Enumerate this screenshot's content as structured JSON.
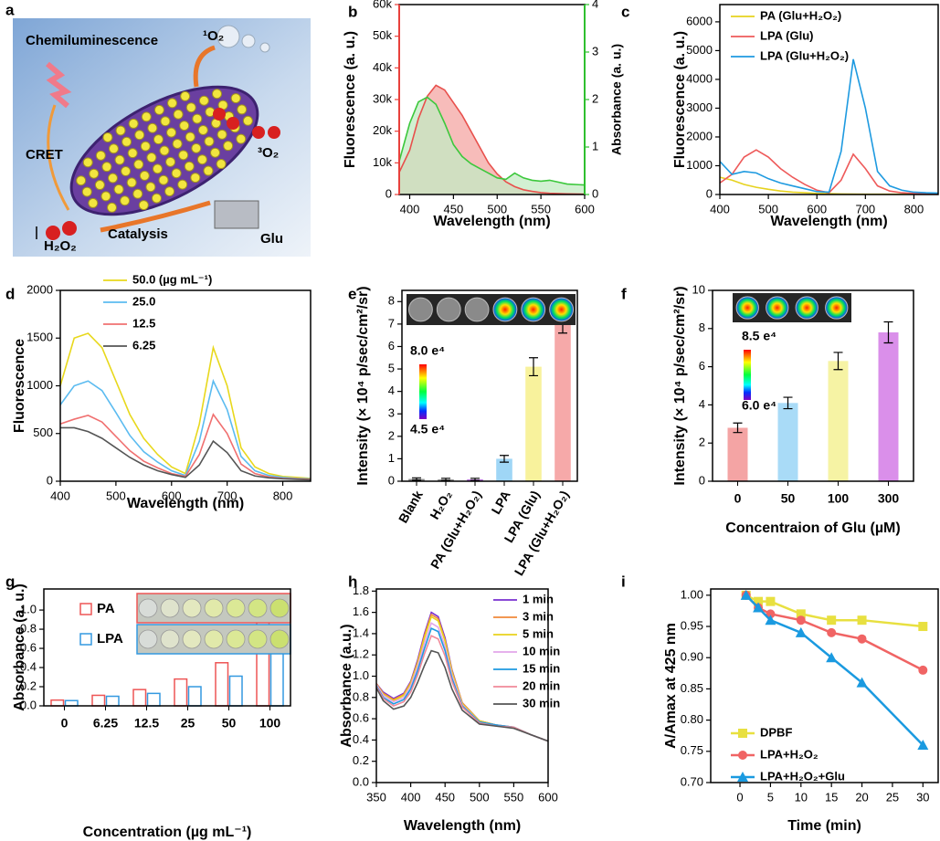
{
  "illustration": {
    "panel": "a",
    "labels": [
      "Chemiluminescence",
      "¹O₂",
      "³O₂",
      "CRET",
      "H₂O₂",
      "Catalysis",
      "Glu"
    ]
  },
  "chart_data": [
    {
      "panel": "b",
      "type": "line",
      "xlabel": "Wavelength (nm)",
      "ylabel": "Fluorescence (a. u.)",
      "y2label": "Absorbance (a. u.)",
      "axis_color": "#e8413c",
      "y2_color": "#2fbf2f",
      "x": [
        388,
        400,
        410,
        420,
        430,
        440,
        450,
        460,
        470,
        480,
        490,
        500,
        510,
        520,
        530,
        540,
        550,
        560,
        580,
        600
      ],
      "series": [
        {
          "color": "#e8504c",
          "fill": "#f4a6a3",
          "values": [
            7000,
            14000,
            24000,
            31000,
            34500,
            33000,
            29000,
            25000,
            20000,
            15000,
            10000,
            6500,
            4000,
            2500,
            1500,
            1000,
            600,
            400,
            200,
            100
          ]
        },
        {
          "color": "#3cc83c",
          "fill": "#c3ebc3",
          "axis": "y2",
          "values": [
            0.7,
            1.5,
            1.95,
            2.05,
            1.9,
            1.5,
            1.05,
            0.8,
            0.65,
            0.55,
            0.45,
            0.35,
            0.32,
            0.45,
            0.35,
            0.3,
            0.28,
            0.3,
            0.22,
            0.2
          ]
        }
      ],
      "xlim": [
        388,
        600
      ],
      "xticks": [
        400,
        450,
        500,
        550,
        600
      ],
      "ylim": [
        0,
        60000
      ],
      "yticks": [
        0,
        {
          "value": 10000,
          "label": "10k"
        },
        {
          "value": 20000,
          "label": "20k"
        },
        {
          "value": 30000,
          "label": "30k"
        },
        {
          "value": 40000,
          "label": "40k"
        },
        {
          "value": 50000,
          "label": "50k"
        },
        {
          "value": 60000,
          "label": "60k"
        }
      ],
      "y2lim": [
        0,
        4
      ],
      "y2ticks": [
        0,
        1,
        2,
        3,
        4
      ]
    },
    {
      "panel": "c",
      "type": "line",
      "xlabel": "Wavelength (nm)",
      "ylabel": "Fluorescence (a. u.)",
      "x": [
        400,
        425,
        450,
        475,
        500,
        525,
        550,
        575,
        600,
        625,
        650,
        675,
        700,
        725,
        750,
        775,
        800,
        825,
        850
      ],
      "series": [
        {
          "name": "PA (Glu+H₂O₂)",
          "color": "#e6d21e",
          "values": [
            600,
            500,
            350,
            250,
            180,
            120,
            80,
            60,
            40,
            30,
            20,
            15,
            10,
            10,
            10,
            10,
            10,
            10,
            10
          ]
        },
        {
          "name": "LPA (Glu)",
          "color": "#ee5a5a",
          "values": [
            400,
            700,
            1300,
            1550,
            1300,
            900,
            600,
            350,
            150,
            60,
            500,
            1400,
            900,
            300,
            120,
            60,
            40,
            30,
            20
          ]
        },
        {
          "name": "LPA (Glu+H₂O₂)",
          "color": "#1e9ae0",
          "values": [
            1150,
            700,
            800,
            750,
            550,
            400,
            300,
            200,
            100,
            80,
            1500,
            4700,
            3000,
            800,
            300,
            150,
            80,
            60,
            50
          ]
        }
      ],
      "xlim": [
        400,
        850
      ],
      "xticks": [
        400,
        500,
        600,
        700,
        800
      ],
      "ylim": [
        0,
        6600
      ],
      "yticks": [
        0,
        1000,
        2000,
        3000,
        4000,
        5000,
        6000
      ]
    },
    {
      "panel": "d",
      "type": "line",
      "xlabel": "Wavelength (nm)",
      "ylabel": "Fluorescence",
      "x": [
        400,
        425,
        450,
        475,
        500,
        525,
        550,
        575,
        600,
        625,
        650,
        675,
        700,
        725,
        750,
        775,
        800,
        825,
        850
      ],
      "series": [
        {
          "name": "50.0 (µg mL⁻¹)",
          "color": "#e8d81c",
          "values": [
            1000,
            1500,
            1550,
            1400,
            1050,
            700,
            450,
            280,
            150,
            80,
            600,
            1400,
            1000,
            350,
            150,
            80,
            50,
            40,
            30
          ]
        },
        {
          "name": "25.0",
          "color": "#5bbbf0",
          "values": [
            800,
            1000,
            1050,
            950,
            720,
            480,
            310,
            200,
            110,
            60,
            420,
            1050,
            750,
            260,
            110,
            60,
            40,
            30,
            25
          ]
        },
        {
          "name": "12.5",
          "color": "#f07070",
          "values": [
            600,
            650,
            690,
            620,
            470,
            320,
            210,
            140,
            80,
            50,
            280,
            700,
            500,
            180,
            80,
            45,
            30,
            25,
            20
          ]
        },
        {
          "name": "6.25",
          "color": "#555555",
          "values": [
            560,
            560,
            520,
            450,
            350,
            250,
            170,
            110,
            70,
            40,
            170,
            420,
            300,
            110,
            55,
            35,
            25,
            20,
            15
          ]
        }
      ],
      "xlim": [
        400,
        850
      ],
      "xticks": [
        400,
        500,
        600,
        700,
        800
      ],
      "ylim": [
        0,
        2000
      ],
      "yticks": [
        0,
        500,
        1000,
        1500,
        2000
      ]
    },
    {
      "panel": "e",
      "type": "bar",
      "ylabel": "Intensity (× 10⁴ p/sec/cm²/sr)",
      "categories": [
        "Blank",
        "H₂O₂",
        "PA (Glu+H₂O₂)",
        "LPA",
        "LPA (Glu)",
        "LPA (Glu+H₂O₂)"
      ],
      "values": [
        0.1,
        0.08,
        0.08,
        1.0,
        5.1,
        7.2
      ],
      "errors": [
        0.05,
        0.05,
        0.05,
        0.15,
        0.4,
        0.6
      ],
      "colors": [
        "#8c8c8c",
        "#8c8c8c",
        "#b36ad6",
        "#9fd6f6",
        "#f8f29c",
        "#f6a9a9"
      ],
      "colorbar_labels": [
        "8.0 e⁴",
        "4.5 e⁴"
      ],
      "ylim": [
        0,
        8.5
      ],
      "yticks": [
        0,
        1,
        2,
        3,
        4,
        5,
        6,
        7,
        8
      ]
    },
    {
      "panel": "f",
      "type": "bar",
      "xlabel": "Concentraion of Glu (µM)",
      "ylabel": "Intensity (× 10⁴ p/sec/cm²/sr)",
      "categories": [
        "0",
        "50",
        "100",
        "300"
      ],
      "values": [
        2.8,
        4.1,
        6.3,
        7.8
      ],
      "errors": [
        0.25,
        0.3,
        0.45,
        0.55
      ],
      "colors": [
        "#f4a4a4",
        "#a9dbf7",
        "#f6f3a4",
        "#da8fea"
      ],
      "colorbar_labels": [
        "8.5 e⁴",
        "6.0 e⁴"
      ],
      "ylim": [
        0,
        10
      ],
      "yticks": [
        0,
        2,
        4,
        6,
        8,
        10
      ]
    },
    {
      "panel": "g",
      "type": "bar",
      "xlabel": "Concentration (µg mL⁻¹)",
      "ylabel": "Absorbance (a. u.)",
      "categories": [
        "0",
        "6.25",
        "12.5",
        "25",
        "50",
        "100"
      ],
      "series": [
        {
          "name": "PA",
          "color": "#ee5555",
          "values": [
            0.06,
            0.11,
            0.17,
            0.28,
            0.45,
            0.95
          ]
        },
        {
          "name": "LPA",
          "color": "#3399e0",
          "values": [
            0.055,
            0.1,
            0.13,
            0.2,
            0.31,
            0.56
          ]
        }
      ],
      "ylim": [
        0,
        1.22
      ],
      "yticks": [
        {
          "value": 0,
          "label": "0.0"
        },
        {
          "value": 0.2,
          "label": "0.2"
        },
        {
          "value": 0.4,
          "label": "0.4"
        },
        {
          "value": 0.6,
          "label": "0.6"
        },
        {
          "value": 0.8,
          "label": "0.8"
        },
        {
          "value": 1,
          "label": "1.0"
        }
      ]
    },
    {
      "panel": "h",
      "type": "line",
      "xlabel": "Wavelength (nm)",
      "ylabel": "Absorbance (a.u.)",
      "x": [
        350,
        360,
        375,
        390,
        400,
        410,
        420,
        430,
        440,
        450,
        460,
        475,
        500,
        525,
        550,
        575,
        600
      ],
      "series": [
        {
          "name": "1 min",
          "color": "#7a2fd0",
          "values": [
            0.93,
            0.85,
            0.79,
            0.84,
            0.95,
            1.15,
            1.4,
            1.6,
            1.56,
            1.36,
            1.06,
            0.75,
            0.58,
            0.54,
            0.52,
            0.45,
            0.39
          ]
        },
        {
          "name": "3 min",
          "color": "#f08a3a",
          "values": [
            0.93,
            0.84,
            0.78,
            0.83,
            0.94,
            1.13,
            1.38,
            1.58,
            1.54,
            1.34,
            1.05,
            0.75,
            0.58,
            0.54,
            0.52,
            0.45,
            0.39
          ]
        },
        {
          "name": "5 min",
          "color": "#e8d21c",
          "values": [
            0.92,
            0.83,
            0.77,
            0.82,
            0.93,
            1.12,
            1.36,
            1.56,
            1.52,
            1.33,
            1.04,
            0.74,
            0.58,
            0.54,
            0.52,
            0.45,
            0.39
          ]
        },
        {
          "name": "10 min",
          "color": "#e2a6ea",
          "values": [
            0.92,
            0.82,
            0.76,
            0.8,
            0.91,
            1.09,
            1.31,
            1.5,
            1.46,
            1.28,
            1.01,
            0.73,
            0.57,
            0.54,
            0.52,
            0.45,
            0.39
          ]
        },
        {
          "name": "15 min",
          "color": "#1e9ae0",
          "values": [
            0.91,
            0.8,
            0.74,
            0.78,
            0.88,
            1.05,
            1.26,
            1.45,
            1.42,
            1.24,
            0.98,
            0.72,
            0.57,
            0.54,
            0.52,
            0.45,
            0.39
          ]
        },
        {
          "name": "20 min",
          "color": "#f08a9a",
          "values": [
            0.9,
            0.79,
            0.72,
            0.76,
            0.85,
            1.01,
            1.21,
            1.38,
            1.35,
            1.19,
            0.95,
            0.71,
            0.56,
            0.53,
            0.52,
            0.45,
            0.39
          ]
        },
        {
          "name": "30 min",
          "color": "#555555",
          "values": [
            0.89,
            0.77,
            0.69,
            0.72,
            0.8,
            0.94,
            1.1,
            1.24,
            1.22,
            1.08,
            0.88,
            0.68,
            0.55,
            0.53,
            0.51,
            0.45,
            0.39
          ]
        }
      ],
      "xlim": [
        350,
        600
      ],
      "xticks": [
        350,
        400,
        450,
        500,
        550,
        600
      ],
      "ylim": [
        0,
        1.82
      ],
      "yticks": [
        {
          "value": 0,
          "label": "0.0"
        },
        {
          "value": 0.2,
          "label": "0.2"
        },
        {
          "value": 0.4,
          "label": "0.4"
        },
        {
          "value": 0.6,
          "label": "0.6"
        },
        {
          "value": 0.8,
          "label": "0.8"
        },
        {
          "value": 1,
          "label": "1.0"
        },
        {
          "value": 1.2,
          "label": "1.2"
        },
        {
          "value": 1.4,
          "label": "1.4"
        },
        {
          "value": 1.6,
          "label": "1.6"
        },
        {
          "value": 1.8,
          "label": "1.8"
        }
      ]
    },
    {
      "panel": "i",
      "type": "line",
      "xlabel": "Time (min)",
      "ylabel": "A/Amax at 425 nm",
      "x": [
        1,
        3,
        5,
        10,
        15,
        20,
        30
      ],
      "series": [
        {
          "name": "DPBF",
          "color": "#e8e040",
          "marker": "square",
          "values": [
            1.0,
            0.99,
            0.99,
            0.97,
            0.96,
            0.96,
            0.95
          ]
        },
        {
          "name": "LPA+H₂O₂",
          "color": "#f06464",
          "marker": "circle",
          "values": [
            1.0,
            0.98,
            0.97,
            0.96,
            0.94,
            0.93,
            0.88
          ]
        },
        {
          "name": "LPA+H₂O₂+Glu",
          "color": "#1a9ae0",
          "marker": "triangle",
          "values": [
            1.0,
            0.98,
            0.96,
            0.94,
            0.9,
            0.86,
            0.76
          ]
        }
      ],
      "xlim": [
        -4.8,
        32.5
      ],
      "xticks": [
        0,
        5,
        10,
        15,
        20,
        25,
        30
      ],
      "ylim": [
        0.7,
        1.01
      ],
      "yticks": [
        {
          "value": 0.7,
          "label": "0.70"
        },
        {
          "value": 0.75,
          "label": "0.75"
        },
        {
          "value": 0.8,
          "label": "0.80"
        },
        {
          "value": 0.85,
          "label": "0.85"
        },
        {
          "value": 0.9,
          "label": "0.90"
        },
        {
          "value": 0.95,
          "label": "0.95"
        },
        {
          "value": 1,
          "label": "1.00"
        }
      ]
    }
  ]
}
